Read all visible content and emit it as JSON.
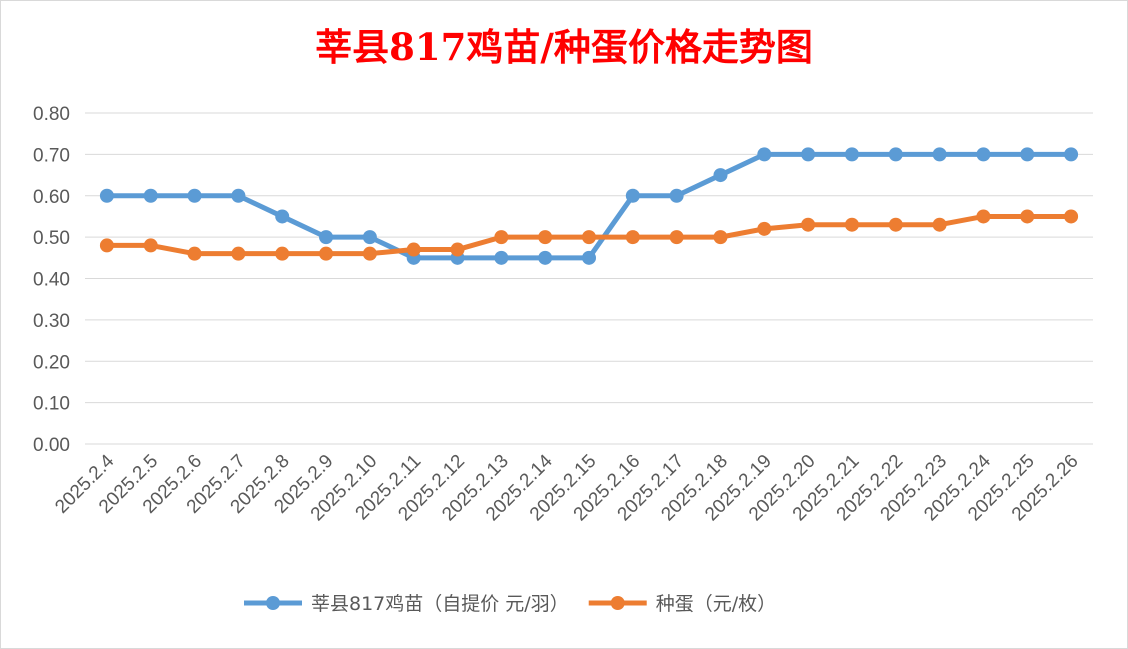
{
  "chart_data": {
    "type": "line",
    "title": "莘县817鸡苗/种蛋价格走势图",
    "xlabel": "",
    "ylabel": "",
    "ylim": [
      0,
      0.8
    ],
    "yticks": [
      "0.00",
      "0.10",
      "0.20",
      "0.30",
      "0.40",
      "0.50",
      "0.60",
      "0.70",
      "0.80"
    ],
    "grid": true,
    "legend_position": "bottom",
    "categories": [
      "2025.2.4",
      "2025.2.5",
      "2025.2.6",
      "2025.2.7",
      "2025.2.8",
      "2025.2.9",
      "2025.2.10",
      "2025.2.11",
      "2025.2.12",
      "2025.2.13",
      "2025.2.14",
      "2025.2.15",
      "2025.2.16",
      "2025.2.17",
      "2025.2.18",
      "2025.2.19",
      "2025.2.20",
      "2025.2.21",
      "2025.2.22",
      "2025.2.23",
      "2025.2.24",
      "2025.2.25",
      "2025.2.26"
    ],
    "series": [
      {
        "name": "莘县817鸡苗（自提价 元/羽）",
        "color": "#5b9bd5",
        "values": [
          0.6,
          0.6,
          0.6,
          0.6,
          0.55,
          0.5,
          0.5,
          0.45,
          0.45,
          0.45,
          0.45,
          0.45,
          0.6,
          0.6,
          0.65,
          0.7,
          0.7,
          0.7,
          0.7,
          0.7,
          0.7,
          0.7,
          0.7
        ]
      },
      {
        "name": "种蛋（元/枚）",
        "color": "#ed7d31",
        "values": [
          0.48,
          0.48,
          0.46,
          0.46,
          0.46,
          0.46,
          0.46,
          0.47,
          0.47,
          0.5,
          0.5,
          0.5,
          0.5,
          0.5,
          0.5,
          0.52,
          0.53,
          0.53,
          0.53,
          0.53,
          0.55,
          0.55,
          0.55
        ]
      }
    ],
    "title_color": "#ff0000",
    "gridline_color": "#d9d9d9"
  }
}
